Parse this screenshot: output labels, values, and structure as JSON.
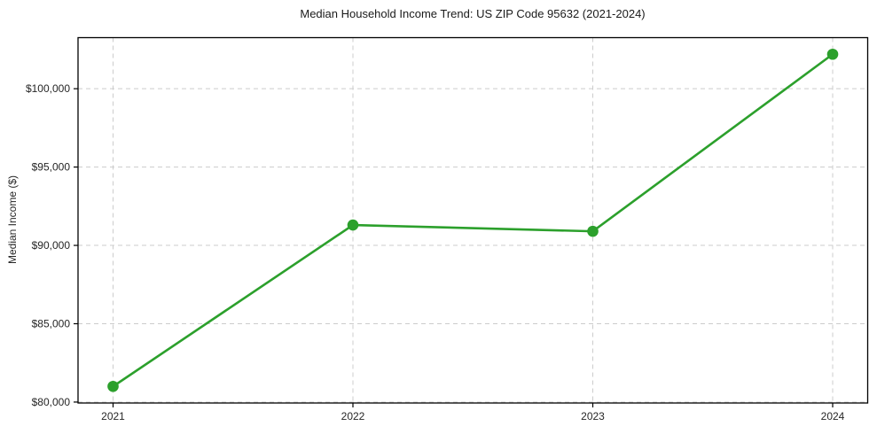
{
  "chart_data": {
    "type": "line",
    "title": "Median Household Income Trend: US ZIP Code 95632 (2021-2024)",
    "xlabel": "",
    "ylabel": "Median Income ($)",
    "categories": [
      "2021",
      "2022",
      "2023",
      "2024"
    ],
    "series": [
      {
        "name": "Median Household Income",
        "values": [
          81000,
          91300,
          90900,
          102200
        ],
        "color": "#2ca02c",
        "marker": "circle"
      }
    ],
    "yticks": [
      80000,
      85000,
      90000,
      95000,
      100000
    ],
    "ytick_labels": [
      "$80,000",
      "$85,000",
      "$90,000",
      "$95,000",
      "$100,000"
    ],
    "ylim": [
      79940,
      103260
    ],
    "grid": true,
    "grid_style": "dashed",
    "legend": false,
    "colors": {
      "line": "#2ca02c",
      "grid": "#cccccc",
      "axis": "#000000",
      "tick_text": "#262626",
      "background": "#ffffff"
    }
  }
}
